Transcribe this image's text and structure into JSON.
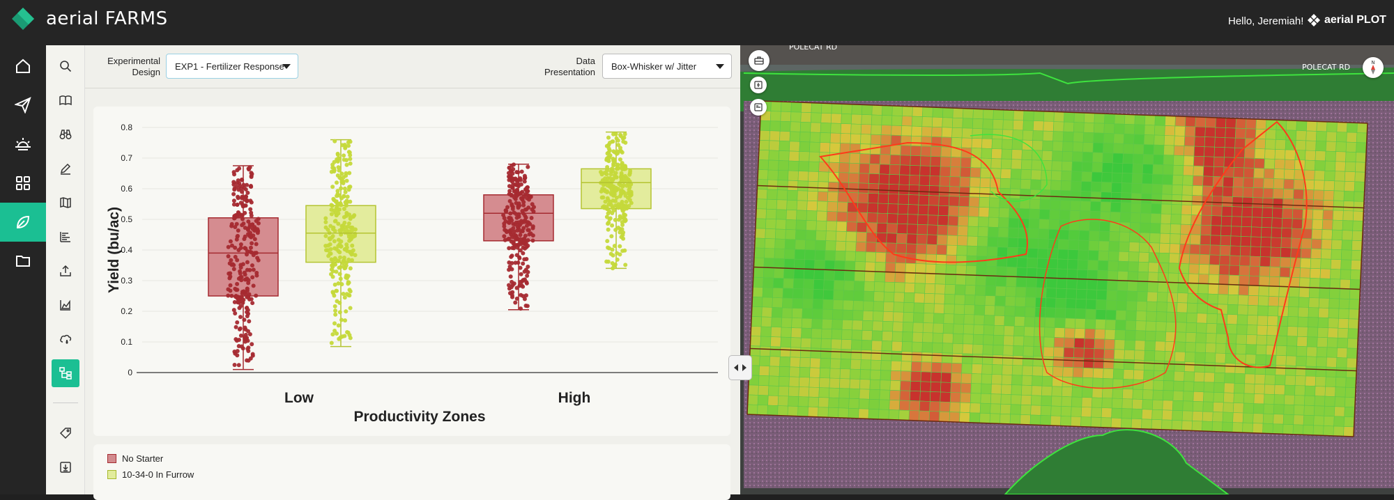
{
  "app": {
    "brand_name": "aerial FARMS",
    "greeting": "Hello, Jeremiah!",
    "plot_brand": "aerial PLOT"
  },
  "rail": {
    "items": [
      {
        "icon": "home-icon"
      },
      {
        "icon": "paper-plane-icon"
      },
      {
        "icon": "sun-weather-icon"
      },
      {
        "icon": "grid-dashboard-icon"
      },
      {
        "icon": "leaf-icon",
        "active": true
      },
      {
        "icon": "folder-icon"
      }
    ]
  },
  "toolbar": {
    "tools": [
      "search-icon",
      "book-icon",
      "binoculars-icon",
      "pencil-icon",
      "map-icon",
      "bar-chart-icon",
      "upload-icon",
      "area-chart-icon",
      "cloud-drop-icon",
      "tree-diagram-icon",
      "tag-icon",
      "import-icon"
    ]
  },
  "controls": {
    "design_label_1": "Experimental",
    "design_label_2": "Design",
    "design_value": "EXP1 - Fertilizer Response",
    "presentation_label_1": "Data",
    "presentation_label_2": "Presentation",
    "presentation_value": "Box-Whisker w/ Jitter"
  },
  "legend": {
    "items": [
      {
        "label": "No Starter",
        "color": "#a52a30"
      },
      {
        "label": "10-34-0 In Furrow",
        "color": "#c5d93a"
      }
    ]
  },
  "map": {
    "road_label_1": "POLECAT RD",
    "road_label_2": "POLECAT RD",
    "north": "N"
  },
  "chart_data": {
    "type": "box-whisker-jitter",
    "title": "",
    "xlabel": "Productivity Zones",
    "ylabel": "Yield (bu/ac)",
    "ylim": [
      0,
      0.8
    ],
    "yticks": [
      0,
      0.1,
      0.2,
      0.3,
      0.4,
      0.5,
      0.6,
      0.7,
      0.8
    ],
    "ytick_labels": [
      "0",
      "0.1",
      "0.2",
      "0.3",
      "0.4",
      "0.5",
      "0.6",
      "0.7",
      "0.8"
    ],
    "categories": [
      "Low",
      "High"
    ],
    "grid": true,
    "series": [
      {
        "name": "No Starter",
        "color": "#a52a30",
        "boxes": [
          {
            "category": "Low",
            "min": 0.01,
            "q1": 0.25,
            "median": 0.39,
            "q3": 0.505,
            "max": 0.675
          },
          {
            "category": "High",
            "min": 0.205,
            "q1": 0.43,
            "median": 0.52,
            "q3": 0.58,
            "max": 0.68
          }
        ]
      },
      {
        "name": "10-34-0 In Furrow",
        "color": "#c5d93a",
        "boxes": [
          {
            "category": "Low",
            "min": 0.085,
            "q1": 0.36,
            "median": 0.455,
            "q3": 0.545,
            "max": 0.76
          },
          {
            "category": "High",
            "min": 0.34,
            "q1": 0.535,
            "median": 0.62,
            "q3": 0.665,
            "max": 0.785
          }
        ]
      }
    ]
  }
}
